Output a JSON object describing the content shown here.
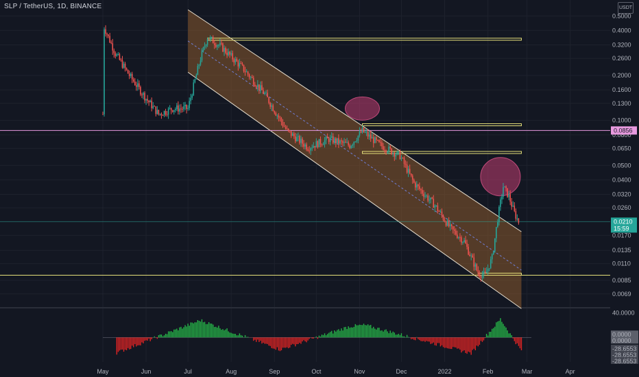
{
  "title": "SLP / TetherUS, 1D, BINANCE",
  "currency": "USDT",
  "colors": {
    "background": "#131722",
    "grid": "#1e222d",
    "up": "#26a69a",
    "down": "#ef5350",
    "channel_fill": "#8a5a2e",
    "channel_line": "#e8e0d0",
    "zone_line": "#e6e07a",
    "pink_line": "#e89adf",
    "osc_pos": "#26b548",
    "osc_neg": "#e02424",
    "ellipse": "#b23a6a"
  },
  "price_axis": {
    "ticks": [
      "0.5000",
      "0.4000",
      "0.3200",
      "0.2600",
      "0.2000",
      "0.1600",
      "0.1300",
      "0.1000",
      "0.0800",
      "0.0650",
      "0.0500",
      "0.0400",
      "0.0320",
      "0.0260",
      "0.0210",
      "0.0170",
      "0.0135",
      "0.0110",
      "0.0085",
      "0.0069"
    ],
    "current_price": "0.0210",
    "countdown": "15:59",
    "pink_level_label": "0.0856"
  },
  "time_axis": {
    "labels": [
      "May",
      "Jun",
      "Jul",
      "Aug",
      "Sep",
      "Oct",
      "Nov",
      "Dec",
      "2022",
      "Feb",
      "Mar",
      "Apr"
    ]
  },
  "oscillator": {
    "axis_labels": [
      "40.0000",
      "0.0000",
      "0.0000",
      "-28.6553",
      "-28.6553",
      "-28.6553"
    ]
  },
  "chart_data": {
    "type": "candlestick",
    "title": "SLP / TetherUS, 1D, BINANCE",
    "y_scale": "log",
    "ylim": [
      0.006,
      0.6
    ],
    "x_range": [
      "2021-05-01",
      "2022-04-10"
    ],
    "last_price": 0.021,
    "series_close_approx": [
      {
        "date": "2021-05-01",
        "close": 0.11
      },
      {
        "date": "2021-05-02",
        "close": 0.42
      },
      {
        "date": "2021-05-10",
        "close": 0.28
      },
      {
        "date": "2021-05-20",
        "close": 0.2
      },
      {
        "date": "2021-06-01",
        "close": 0.14
      },
      {
        "date": "2021-06-10",
        "close": 0.11
      },
      {
        "date": "2021-06-20",
        "close": 0.12
      },
      {
        "date": "2021-07-01",
        "close": 0.12
      },
      {
        "date": "2021-07-10",
        "close": 0.26
      },
      {
        "date": "2021-07-15",
        "close": 0.36
      },
      {
        "date": "2021-07-25",
        "close": 0.31
      },
      {
        "date": "2021-08-10",
        "close": 0.22
      },
      {
        "date": "2021-08-25",
        "close": 0.15
      },
      {
        "date": "2021-09-10",
        "close": 0.085
      },
      {
        "date": "2021-09-25",
        "close": 0.066
      },
      {
        "date": "2021-10-10",
        "close": 0.075
      },
      {
        "date": "2021-10-25",
        "close": 0.068
      },
      {
        "date": "2021-11-03",
        "close": 0.085
      },
      {
        "date": "2021-11-15",
        "close": 0.069
      },
      {
        "date": "2021-11-30",
        "close": 0.058
      },
      {
        "date": "2021-12-10",
        "close": 0.038
      },
      {
        "date": "2021-12-25",
        "close": 0.027
      },
      {
        "date": "2022-01-05",
        "close": 0.019
      },
      {
        "date": "2022-01-15",
        "close": 0.0155
      },
      {
        "date": "2022-01-25",
        "close": 0.0095
      },
      {
        "date": "2022-01-30",
        "close": 0.0092
      },
      {
        "date": "2022-02-04",
        "close": 0.012
      },
      {
        "date": "2022-02-08",
        "close": 0.022
      },
      {
        "date": "2022-02-12",
        "close": 0.036
      },
      {
        "date": "2022-02-16",
        "close": 0.031
      },
      {
        "date": "2022-02-20",
        "close": 0.024
      },
      {
        "date": "2022-02-23",
        "close": 0.021
      }
    ],
    "horizontal_levels": [
      {
        "price": 0.0856,
        "color": "pink"
      },
      {
        "price": 0.021,
        "color": "teal"
      },
      {
        "price": 0.0092,
        "color": "yellow"
      }
    ],
    "zones": [
      {
        "price_low": 0.345,
        "price_high": 0.355,
        "start": "2021-07-15",
        "end": "2022-02-25"
      },
      {
        "price_low": 0.092,
        "price_high": 0.095,
        "start": "2021-11-03",
        "end": "2022-02-25"
      },
      {
        "price_low": 0.06,
        "price_high": 0.062,
        "start": "2021-11-03",
        "end": "2022-02-25"
      },
      {
        "price_low": 0.0092,
        "price_high": 0.0095,
        "start": "2022-01-25",
        "end": "2022-02-25"
      }
    ],
    "channel": {
      "start": "2021-07-01",
      "end": "2022-02-25",
      "upper_start": 0.55,
      "upper_end": 0.018,
      "lower_start": 0.21,
      "lower_end": 0.0055
    },
    "oscillator": {
      "ylim": [
        -40,
        45
      ],
      "zero": 0,
      "peaks": [
        {
          "date": "2021-07-10",
          "value": 28
        },
        {
          "date": "2021-10-25",
          "value": 18
        },
        {
          "date": "2021-11-05",
          "value": 20
        },
        {
          "date": "2022-02-10",
          "value": 30
        }
      ],
      "troughs": [
        {
          "date": "2021-05-10",
          "value": -26
        },
        {
          "date": "2021-09-05",
          "value": -20
        },
        {
          "date": "2022-01-20",
          "value": -26
        }
      ]
    }
  }
}
